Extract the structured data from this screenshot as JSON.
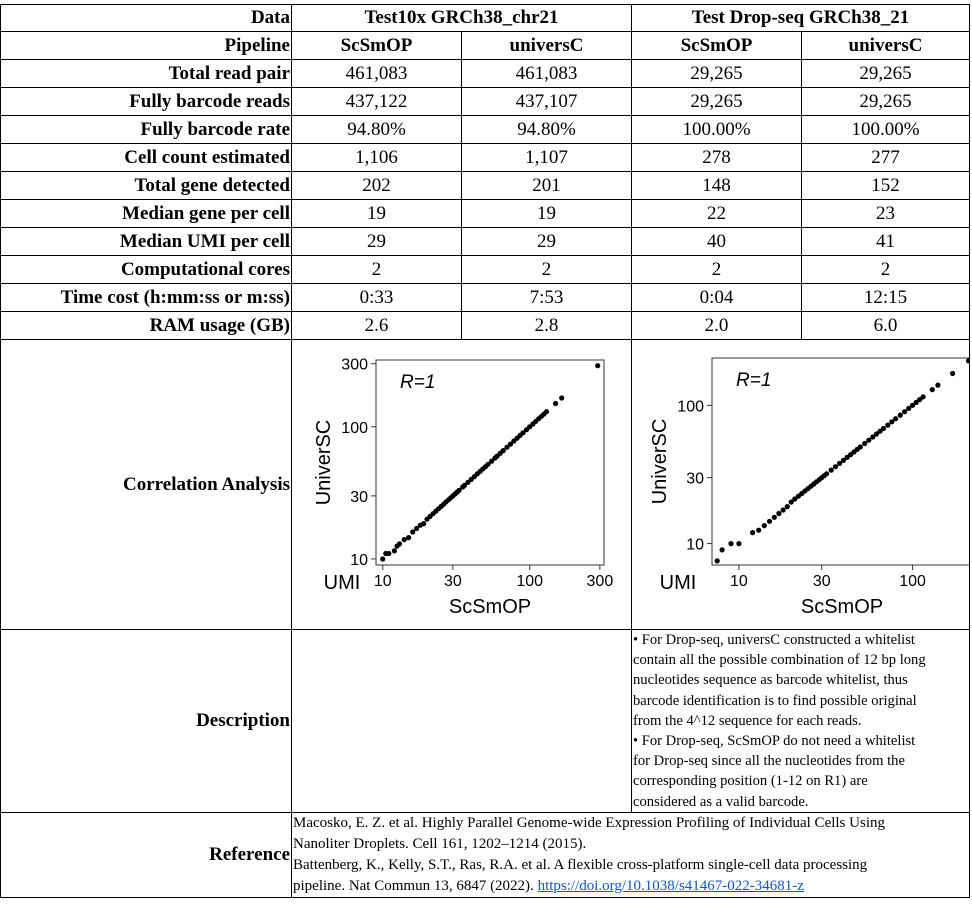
{
  "table": {
    "header": {
      "label": "Data",
      "groups": [
        "Test10x GRCh38_chr21",
        "Test Drop-seq GRCh38_21"
      ]
    },
    "pipeline": {
      "label": "Pipeline",
      "values": [
        "ScSmOP",
        "universC",
        "ScSmOP",
        "universC"
      ]
    },
    "rows": [
      {
        "label": "Total read pair",
        "values": [
          "461,083",
          "461,083",
          "29,265",
          "29,265"
        ]
      },
      {
        "label": "Fully barcode reads",
        "values": [
          "437,122",
          "437,107",
          "29,265",
          "29,265"
        ]
      },
      {
        "label": "Fully barcode rate",
        "values": [
          "94.80%",
          "94.80%",
          "100.00%",
          "100.00%"
        ]
      },
      {
        "label": "Cell count estimated",
        "values": [
          "1,106",
          "1,107",
          "278",
          "277"
        ]
      },
      {
        "label": "Total gene detected",
        "values": [
          "202",
          "201",
          "148",
          "152"
        ]
      },
      {
        "label": "Median gene per cell",
        "values": [
          "19",
          "19",
          "22",
          "23"
        ]
      },
      {
        "label": "Median UMI per cell",
        "values": [
          "29",
          "29",
          "40",
          "41"
        ]
      },
      {
        "label": "Computational cores",
        "values": [
          "2",
          "2",
          "2",
          "2"
        ]
      },
      {
        "label": "Time cost (h:mm:ss or m:ss)",
        "values": [
          "0:33",
          "7:53",
          "0:04",
          "12:15"
        ]
      },
      {
        "label": "RAM usage (GB)",
        "values": [
          "2.6",
          "2.8",
          "2.0",
          "6.0"
        ]
      }
    ],
    "correlation_label": "Correlation Analysis",
    "description_label": "Description",
    "description_lines": [
      "• For Drop-seq, universC constructed a whitelist",
      "contain all the possible combination of 12 bp long",
      "nucleotides sequence as barcode whitelist, thus",
      "barcode identification is to find possible original",
      "from the 4^12 sequence for each reads.",
      "• For Drop-seq, ScSmOP do not need a whitelist",
      "for Drop-seq since all the nucleotides from the",
      "corresponding position (1-12 on R1) are",
      "considered as a valid barcode."
    ],
    "reference_label": "Reference",
    "reference_lines": [
      "Macosko, E. Z. et al. Highly Parallel Genome-wide Expression Profiling of Individual Cells Using",
      "Nanoliter Droplets. Cell 161, 1202–1214 (2015).",
      "Battenberg, K., Kelly, S.T., Ras, R.A. et al. A flexible cross-platform single-cell data processing"
    ],
    "reference_last_line": "pipeline. Nat Commun 13, 6847 (2022). ",
    "reference_doi": "https://doi.org/10.1038/s41467-022-34681-z"
  },
  "chart_data": [
    {
      "type": "scatter",
      "title": "",
      "annotation": "R=1",
      "corner_label": "UMI",
      "xlabel": "ScSmOP",
      "ylabel": "UniverSC",
      "xscale": "log",
      "yscale": "log",
      "xlim": [
        9,
        320
      ],
      "ylim": [
        9,
        320
      ],
      "xticks": [
        10,
        30,
        100,
        300
      ],
      "yticks": [
        10,
        30,
        100,
        300
      ],
      "grid": false,
      "points": [
        [
          10,
          10
        ],
        [
          10.5,
          11
        ],
        [
          11,
          11
        ],
        [
          12,
          11.5
        ],
        [
          12.5,
          12.5
        ],
        [
          13,
          13
        ],
        [
          14,
          14
        ],
        [
          15,
          14.5
        ],
        [
          16,
          16
        ],
        [
          17,
          17
        ],
        [
          18,
          18
        ],
        [
          19,
          18.5
        ],
        [
          20,
          20
        ],
        [
          21,
          21
        ],
        [
          22,
          22
        ],
        [
          23,
          23
        ],
        [
          24,
          24
        ],
        [
          25,
          25
        ],
        [
          26,
          26
        ],
        [
          27,
          27
        ],
        [
          28,
          28
        ],
        [
          29,
          29
        ],
        [
          30,
          30
        ],
        [
          31,
          31
        ],
        [
          32,
          32
        ],
        [
          33,
          33
        ],
        [
          35,
          35
        ],
        [
          36,
          36
        ],
        [
          38,
          38
        ],
        [
          40,
          40
        ],
        [
          42,
          42
        ],
        [
          44,
          44
        ],
        [
          46,
          46
        ],
        [
          48,
          48
        ],
        [
          50,
          50
        ],
        [
          52,
          52
        ],
        [
          55,
          55
        ],
        [
          58,
          58
        ],
        [
          60,
          60
        ],
        [
          63,
          63
        ],
        [
          66,
          66
        ],
        [
          70,
          70
        ],
        [
          74,
          74
        ],
        [
          78,
          78
        ],
        [
          82,
          82
        ],
        [
          86,
          86
        ],
        [
          90,
          90
        ],
        [
          95,
          95
        ],
        [
          100,
          100
        ],
        [
          105,
          105
        ],
        [
          110,
          110
        ],
        [
          115,
          115
        ],
        [
          120,
          120
        ],
        [
          125,
          125
        ],
        [
          130,
          130
        ],
        [
          150,
          150
        ],
        [
          165,
          165
        ],
        [
          290,
          290
        ]
      ]
    },
    {
      "type": "scatter",
      "title": "",
      "annotation": "R=1",
      "corner_label": "UMI",
      "xlabel": "ScSmOP",
      "ylabel": "UniverSC",
      "xscale": "log",
      "yscale": "log",
      "xlim": [
        7,
        220
      ],
      "ylim": [
        7,
        220
      ],
      "xticks": [
        10,
        30,
        100
      ],
      "yticks": [
        10,
        30,
        100
      ],
      "grid": false,
      "points": [
        [
          7.5,
          7.5
        ],
        [
          8,
          9
        ],
        [
          9,
          10
        ],
        [
          10,
          10
        ],
        [
          12,
          12
        ],
        [
          13,
          12.5
        ],
        [
          14,
          13.5
        ],
        [
          15,
          14.5
        ],
        [
          16,
          15.5
        ],
        [
          17,
          16.5
        ],
        [
          18,
          17.5
        ],
        [
          19,
          18.5
        ],
        [
          20,
          20
        ],
        [
          21,
          21
        ],
        [
          22,
          22
        ],
        [
          23,
          23
        ],
        [
          24,
          24
        ],
        [
          25,
          25
        ],
        [
          26,
          26
        ],
        [
          27,
          27
        ],
        [
          28,
          28
        ],
        [
          29,
          29
        ],
        [
          30,
          30
        ],
        [
          31,
          31
        ],
        [
          32,
          32
        ],
        [
          34,
          34
        ],
        [
          36,
          36
        ],
        [
          38,
          38
        ],
        [
          40,
          40
        ],
        [
          42,
          42
        ],
        [
          44,
          44
        ],
        [
          46,
          46
        ],
        [
          48,
          48
        ],
        [
          50,
          50
        ],
        [
          53,
          53
        ],
        [
          56,
          56
        ],
        [
          59,
          59
        ],
        [
          62,
          62
        ],
        [
          65,
          65
        ],
        [
          68,
          68
        ],
        [
          72,
          72
        ],
        [
          76,
          76
        ],
        [
          80,
          80
        ],
        [
          85,
          85
        ],
        [
          90,
          90
        ],
        [
          95,
          95
        ],
        [
          100,
          100
        ],
        [
          105,
          105
        ],
        [
          110,
          110
        ],
        [
          115,
          115
        ],
        [
          130,
          130
        ],
        [
          140,
          140
        ],
        [
          170,
          170
        ],
        [
          210,
          210
        ],
        [
          220,
          220
        ]
      ]
    }
  ]
}
